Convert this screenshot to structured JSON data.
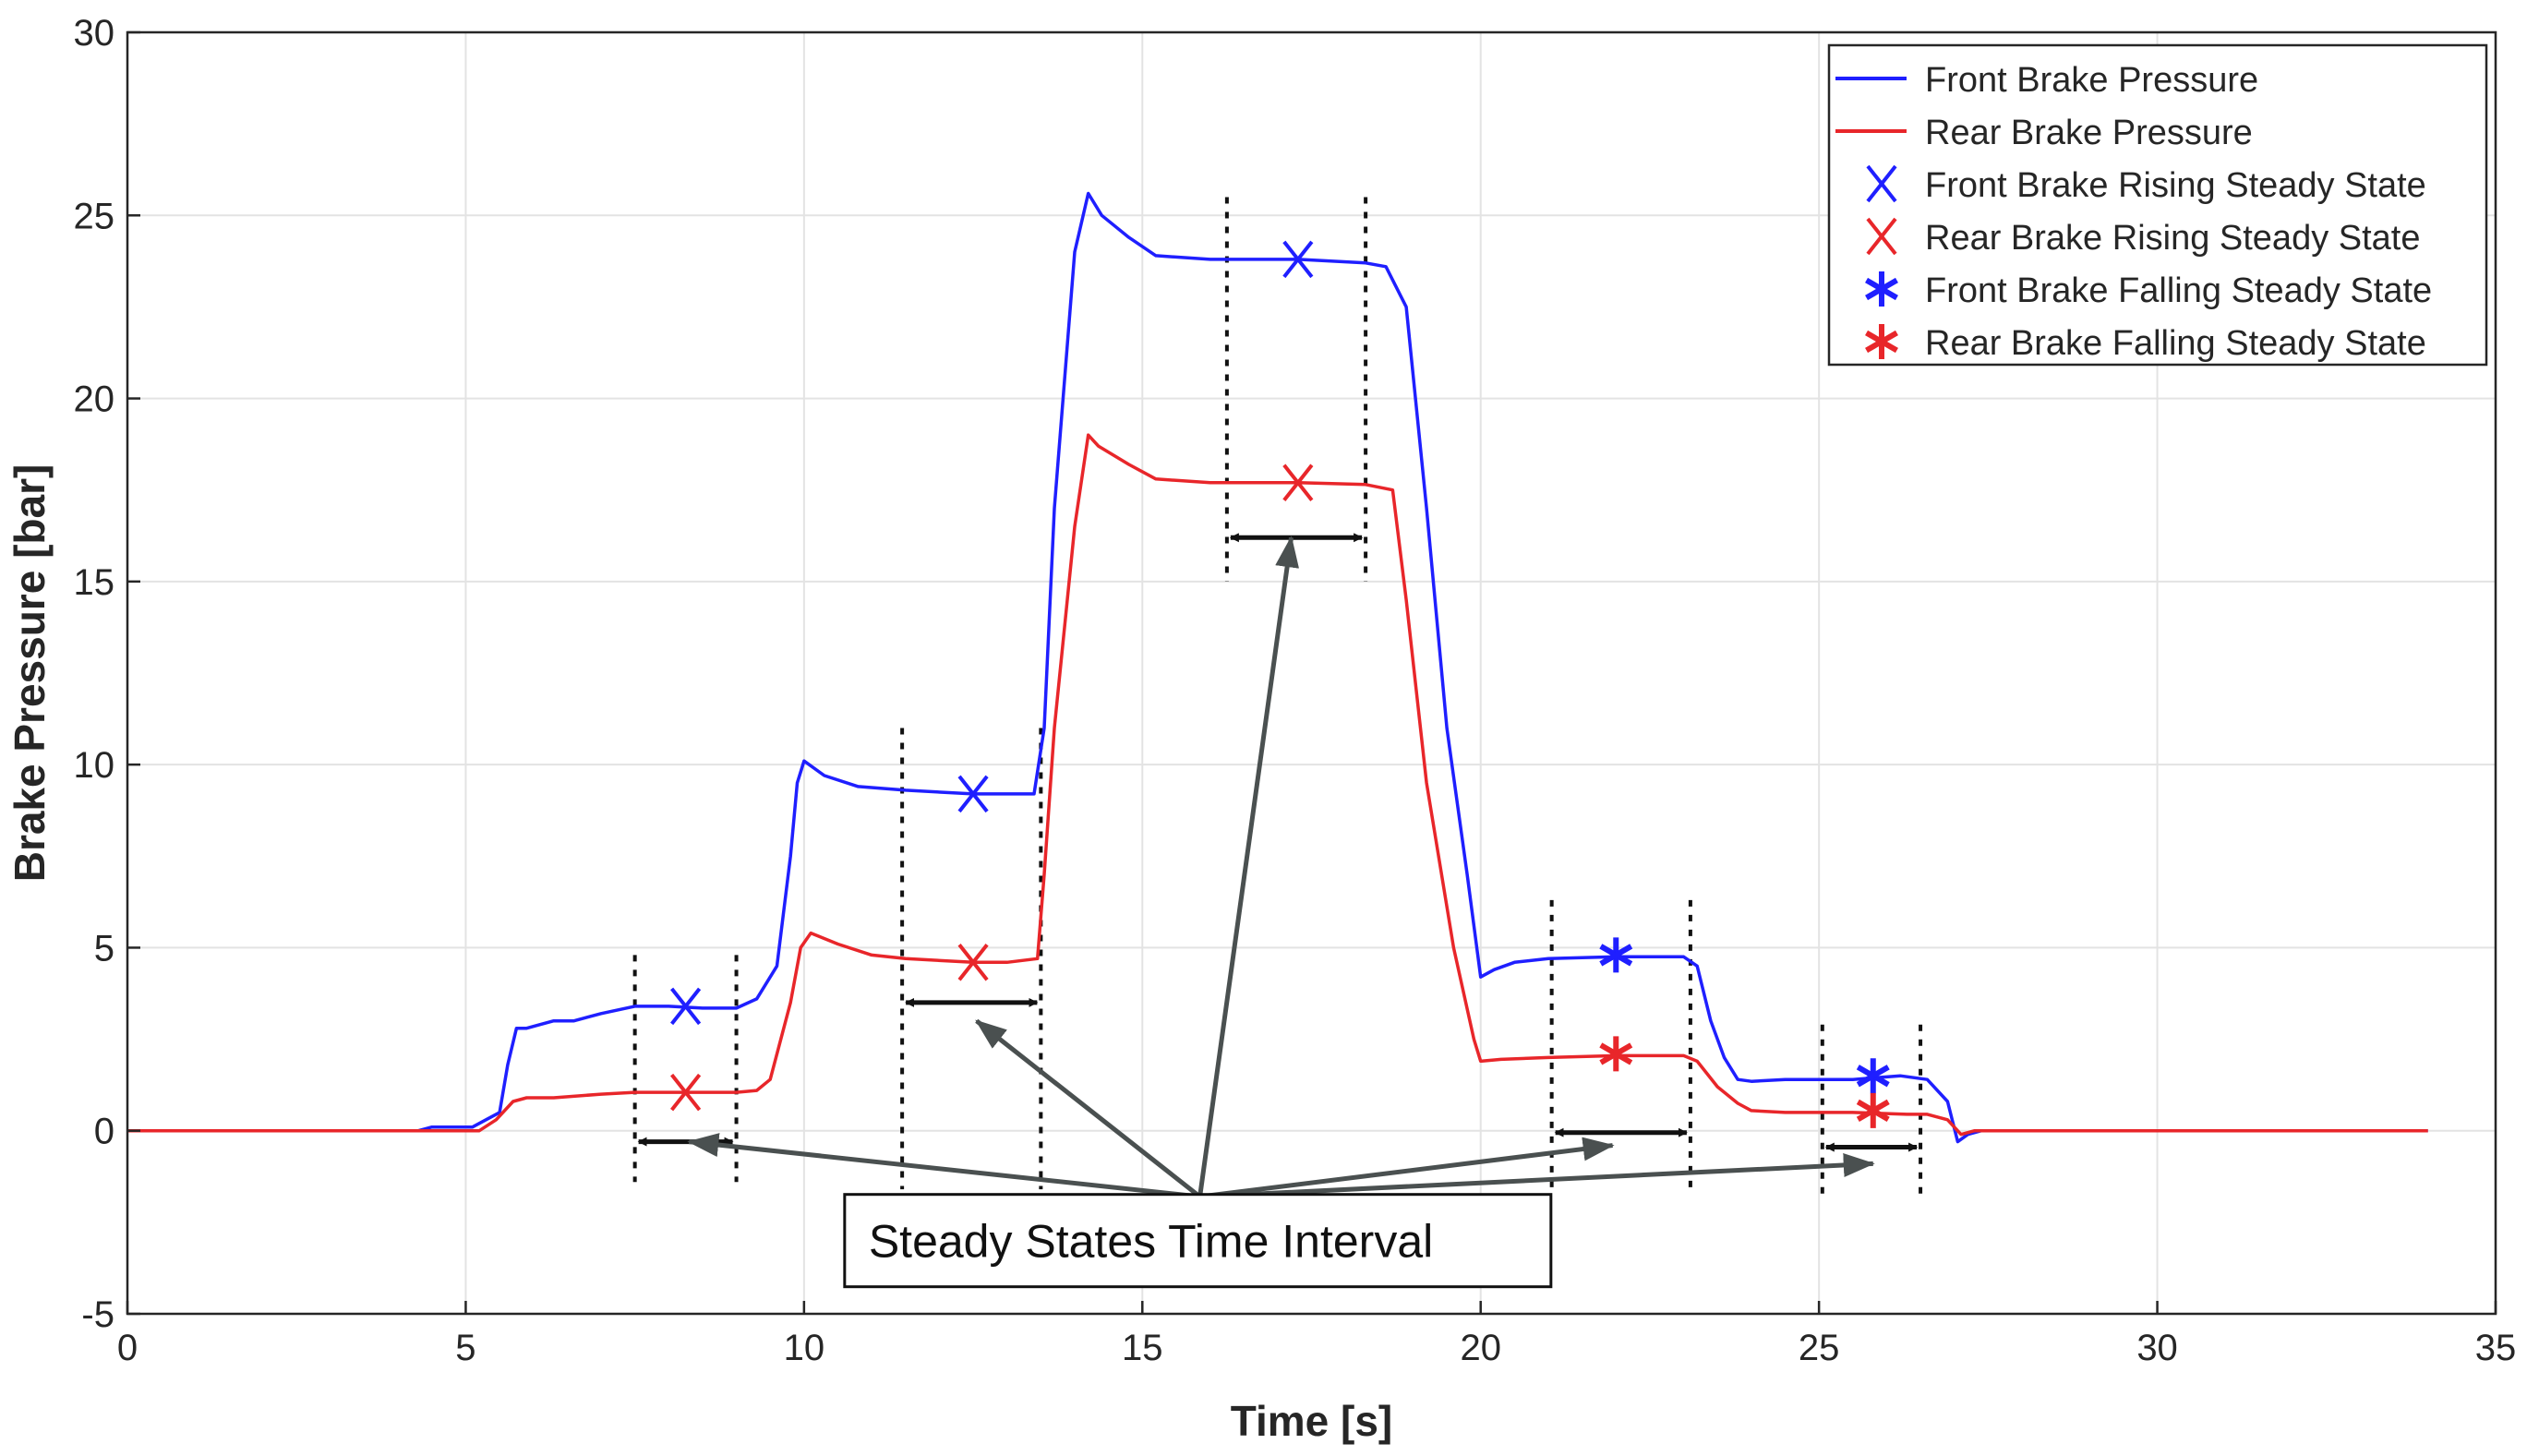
{
  "chart_data": {
    "type": "line",
    "title": "",
    "xlabel": "Time [s]",
    "ylabel": "Brake Pressure [bar]",
    "xlim": [
      0,
      35
    ],
    "ylim": [
      -5,
      30
    ],
    "xticks": [
      0,
      5,
      10,
      15,
      20,
      25,
      30,
      35
    ],
    "yticks": [
      -5,
      0,
      5,
      10,
      15,
      20,
      25,
      30
    ],
    "grid": true,
    "legend_position": "top-right",
    "series": [
      {
        "name": "Front Brake Pressure",
        "color": "#1f1fff",
        "x": [
          0,
          4.3,
          4.5,
          5.1,
          5.3,
          5.5,
          5.62,
          5.75,
          5.9,
          6.1,
          6.3,
          6.6,
          7.0,
          7.5,
          8.0,
          8.5,
          9.0,
          9.3,
          9.6,
          9.8,
          9.9,
          10.0,
          10.3,
          10.8,
          11.5,
          12.5,
          13.0,
          13.4,
          13.55,
          13.7,
          14.0,
          14.2,
          14.4,
          14.8,
          15.2,
          16.0,
          17.3,
          18.3,
          18.6,
          18.9,
          19.2,
          19.5,
          19.8,
          20.0,
          20.2,
          20.5,
          21.0,
          22.0,
          23.0,
          23.2,
          23.4,
          23.6,
          23.8,
          24.0,
          24.5,
          25.5,
          26.2,
          26.6,
          26.9,
          27.05,
          27.2,
          27.4,
          28.0,
          34.0
        ],
        "y": [
          0,
          0,
          0.1,
          0.1,
          0.3,
          0.5,
          1.8,
          2.8,
          2.8,
          2.9,
          3.0,
          3.0,
          3.2,
          3.4,
          3.4,
          3.35,
          3.35,
          3.6,
          4.5,
          7.5,
          9.5,
          10.1,
          9.7,
          9.4,
          9.3,
          9.2,
          9.2,
          9.2,
          11.0,
          17.0,
          24.0,
          25.6,
          25.0,
          24.4,
          23.9,
          23.8,
          23.8,
          23.7,
          23.6,
          22.5,
          17.0,
          11.0,
          7.0,
          4.2,
          4.4,
          4.6,
          4.7,
          4.75,
          4.75,
          4.5,
          3.0,
          2.0,
          1.4,
          1.35,
          1.4,
          1.4,
          1.5,
          1.4,
          0.8,
          -0.3,
          -0.1,
          0,
          0,
          0
        ]
      },
      {
        "name": "Rear Brake Pressure",
        "color": "#e8262a",
        "x": [
          0,
          5.2,
          5.45,
          5.7,
          5.9,
          6.3,
          7.0,
          7.5,
          8.0,
          8.5,
          9.0,
          9.3,
          9.5,
          9.8,
          9.95,
          10.1,
          10.5,
          11.0,
          11.5,
          12.5,
          13.0,
          13.45,
          13.55,
          13.7,
          14.0,
          14.2,
          14.35,
          14.8,
          15.2,
          16.0,
          17.3,
          18.3,
          18.7,
          18.9,
          19.2,
          19.6,
          19.9,
          20.0,
          20.3,
          21.0,
          22.0,
          23.0,
          23.2,
          23.5,
          23.8,
          24.0,
          24.5,
          25.5,
          26.3,
          26.6,
          26.9,
          27.1,
          27.3,
          28.0,
          34.0
        ],
        "y": [
          0,
          0,
          0.3,
          0.8,
          0.9,
          0.9,
          1.0,
          1.05,
          1.05,
          1.05,
          1.05,
          1.1,
          1.4,
          3.5,
          5.0,
          5.4,
          5.1,
          4.8,
          4.7,
          4.6,
          4.6,
          4.7,
          7.0,
          11.0,
          16.5,
          19.0,
          18.7,
          18.2,
          17.8,
          17.7,
          17.7,
          17.65,
          17.5,
          14.5,
          9.5,
          5.0,
          2.5,
          1.9,
          1.95,
          2.0,
          2.05,
          2.05,
          1.9,
          1.2,
          0.75,
          0.55,
          0.5,
          0.5,
          0.45,
          0.45,
          0.3,
          -0.1,
          0,
          0,
          0
        ]
      }
    ],
    "markers": [
      {
        "name": "Front Brake Rising Steady State",
        "symbol": "x",
        "color": "#1f1fff",
        "x": [
          8.25,
          12.5,
          17.3
        ],
        "y": [
          3.4,
          9.2,
          23.8
        ]
      },
      {
        "name": "Rear Brake Rising Steady State",
        "symbol": "x",
        "color": "#e8262a",
        "x": [
          8.25,
          12.5,
          17.3
        ],
        "y": [
          1.05,
          4.6,
          17.7
        ]
      },
      {
        "name": "Front Brake Falling Steady State",
        "symbol": "*",
        "color": "#1f1fff",
        "x": [
          22.0,
          25.8
        ],
        "y": [
          4.8,
          1.5
        ]
      },
      {
        "name": "Rear Brake Falling Steady State",
        "symbol": "*",
        "color": "#e8262a",
        "x": [
          22.0,
          25.8
        ],
        "y": [
          2.1,
          0.55
        ]
      }
    ],
    "steady_state_intervals": [
      {
        "start": 7.5,
        "end": 9.0,
        "line_top": 4.8,
        "line_bottom": -1.4,
        "arrow_y": -0.3
      },
      {
        "start": 11.45,
        "end": 13.5,
        "line_top": 11.0,
        "line_bottom": -1.6,
        "arrow_y": 3.5
      },
      {
        "start": 16.25,
        "end": 18.3,
        "line_top": 25.5,
        "line_bottom": 15.0,
        "arrow_y": 16.2
      },
      {
        "start": 21.05,
        "end": 23.1,
        "line_top": 6.3,
        "line_bottom": -1.6,
        "arrow_y": -0.05
      },
      {
        "start": 25.05,
        "end": 26.5,
        "line_top": 2.9,
        "line_bottom": -1.8,
        "arrow_y": -0.45
      }
    ],
    "annotation": {
      "text": "Steady States Time Interval",
      "origin": {
        "x": 15.85,
        "y": -1.8
      },
      "targets": [
        {
          "x": 8.3,
          "y": -0.3
        },
        {
          "x": 12.55,
          "y": 3.0
        },
        {
          "x": 17.2,
          "y": 16.2
        },
        {
          "x": 21.95,
          "y": -0.4
        },
        {
          "x": 25.8,
          "y": -0.9
        }
      ],
      "box_anchor": {
        "x": 10.6,
        "y": -3.0
      }
    }
  }
}
